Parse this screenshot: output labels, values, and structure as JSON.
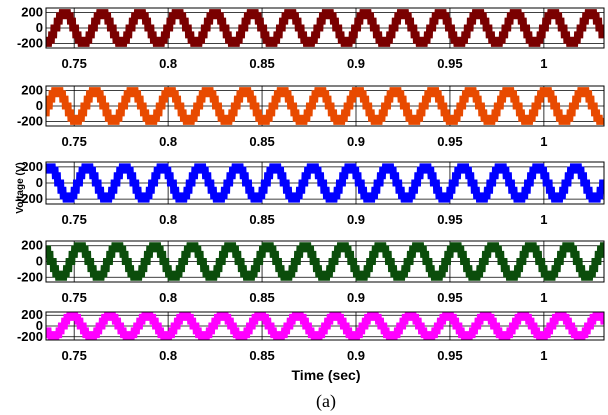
{
  "figure": {
    "xlabel": "Time (sec)",
    "ylabel": "Voltage (V)",
    "caption": "(a)"
  },
  "chart_data": [
    {
      "type": "line",
      "xlim": [
        0.735,
        1.032
      ],
      "ylim": [
        -260,
        260
      ],
      "x_ticks": [
        0.75,
        0.8,
        0.85,
        0.9,
        0.95,
        1
      ],
      "x_tick_labels": [
        "0.75",
        "0.8",
        "0.85",
        "0.9",
        "0.95",
        "1"
      ],
      "y_ticks": [
        200,
        0,
        -200
      ],
      "y_tick_labels": [
        "200",
        "0",
        "-200"
      ],
      "grid": true,
      "series": [
        {
          "color": "#7a0000",
          "waveform": "stepped-multilevel",
          "frequency_hz": 50,
          "amplitude": 200,
          "phase_deg": 0
        }
      ]
    },
    {
      "type": "line",
      "xlim": [
        0.735,
        1.032
      ],
      "ylim": [
        -260,
        260
      ],
      "x_ticks": [
        0.75,
        0.8,
        0.85,
        0.9,
        0.95,
        1
      ],
      "x_tick_labels": [
        "0.75",
        "0.8",
        "0.85",
        "0.9",
        "0.95",
        "1"
      ],
      "y_ticks": [
        200,
        0,
        -200
      ],
      "y_tick_labels": [
        "200",
        "0",
        "-200"
      ],
      "grid": true,
      "series": [
        {
          "color": "#e84a00",
          "waveform": "stepped-multilevel",
          "frequency_hz": 50,
          "amplitude": 200,
          "phase_deg": 72
        }
      ]
    },
    {
      "type": "line",
      "xlim": [
        0.735,
        1.032
      ],
      "ylim": [
        -260,
        260
      ],
      "x_ticks": [
        0.75,
        0.8,
        0.85,
        0.9,
        0.95,
        1
      ],
      "x_tick_labels": [
        "0.75",
        "0.8",
        "0.85",
        "0.9",
        "0.95",
        "1"
      ],
      "y_ticks": [
        200,
        0,
        -200
      ],
      "y_tick_labels": [
        "200",
        "0",
        "-200"
      ],
      "grid": true,
      "series": [
        {
          "color": "#0000ff",
          "waveform": "stepped-multilevel",
          "frequency_hz": 50,
          "amplitude": 200,
          "phase_deg": 144
        }
      ]
    },
    {
      "type": "line",
      "xlim": [
        0.735,
        1.032
      ],
      "ylim": [
        -260,
        260
      ],
      "x_ticks": [
        0.75,
        0.8,
        0.85,
        0.9,
        0.95,
        1
      ],
      "x_tick_labels": [
        "0.75",
        "0.8",
        "0.85",
        "0.9",
        "0.95",
        "1"
      ],
      "y_ticks": [
        200,
        0,
        -200
      ],
      "y_tick_labels": [
        "200",
        "0",
        "-200"
      ],
      "grid": true,
      "series": [
        {
          "color": "#0b4d0b",
          "waveform": "stepped-multilevel",
          "frequency_hz": 50,
          "amplitude": 200,
          "phase_deg": 216
        }
      ]
    },
    {
      "type": "line",
      "xlim": [
        0.735,
        1.032
      ],
      "ylim": [
        -260,
        260
      ],
      "x_ticks": [
        0.75,
        0.8,
        0.85,
        0.9,
        0.95,
        1
      ],
      "x_tick_labels": [
        "0.75",
        "0.8",
        "0.85",
        "0.9",
        "0.95",
        "1"
      ],
      "y_ticks": [
        200,
        0,
        -200
      ],
      "y_tick_labels": [
        "200",
        "0",
        "-200"
      ],
      "grid": true,
      "series": [
        {
          "color": "#ff00ff",
          "waveform": "stepped-multilevel",
          "frequency_hz": 50,
          "amplitude": 200,
          "phase_deg": 288
        }
      ]
    }
  ]
}
